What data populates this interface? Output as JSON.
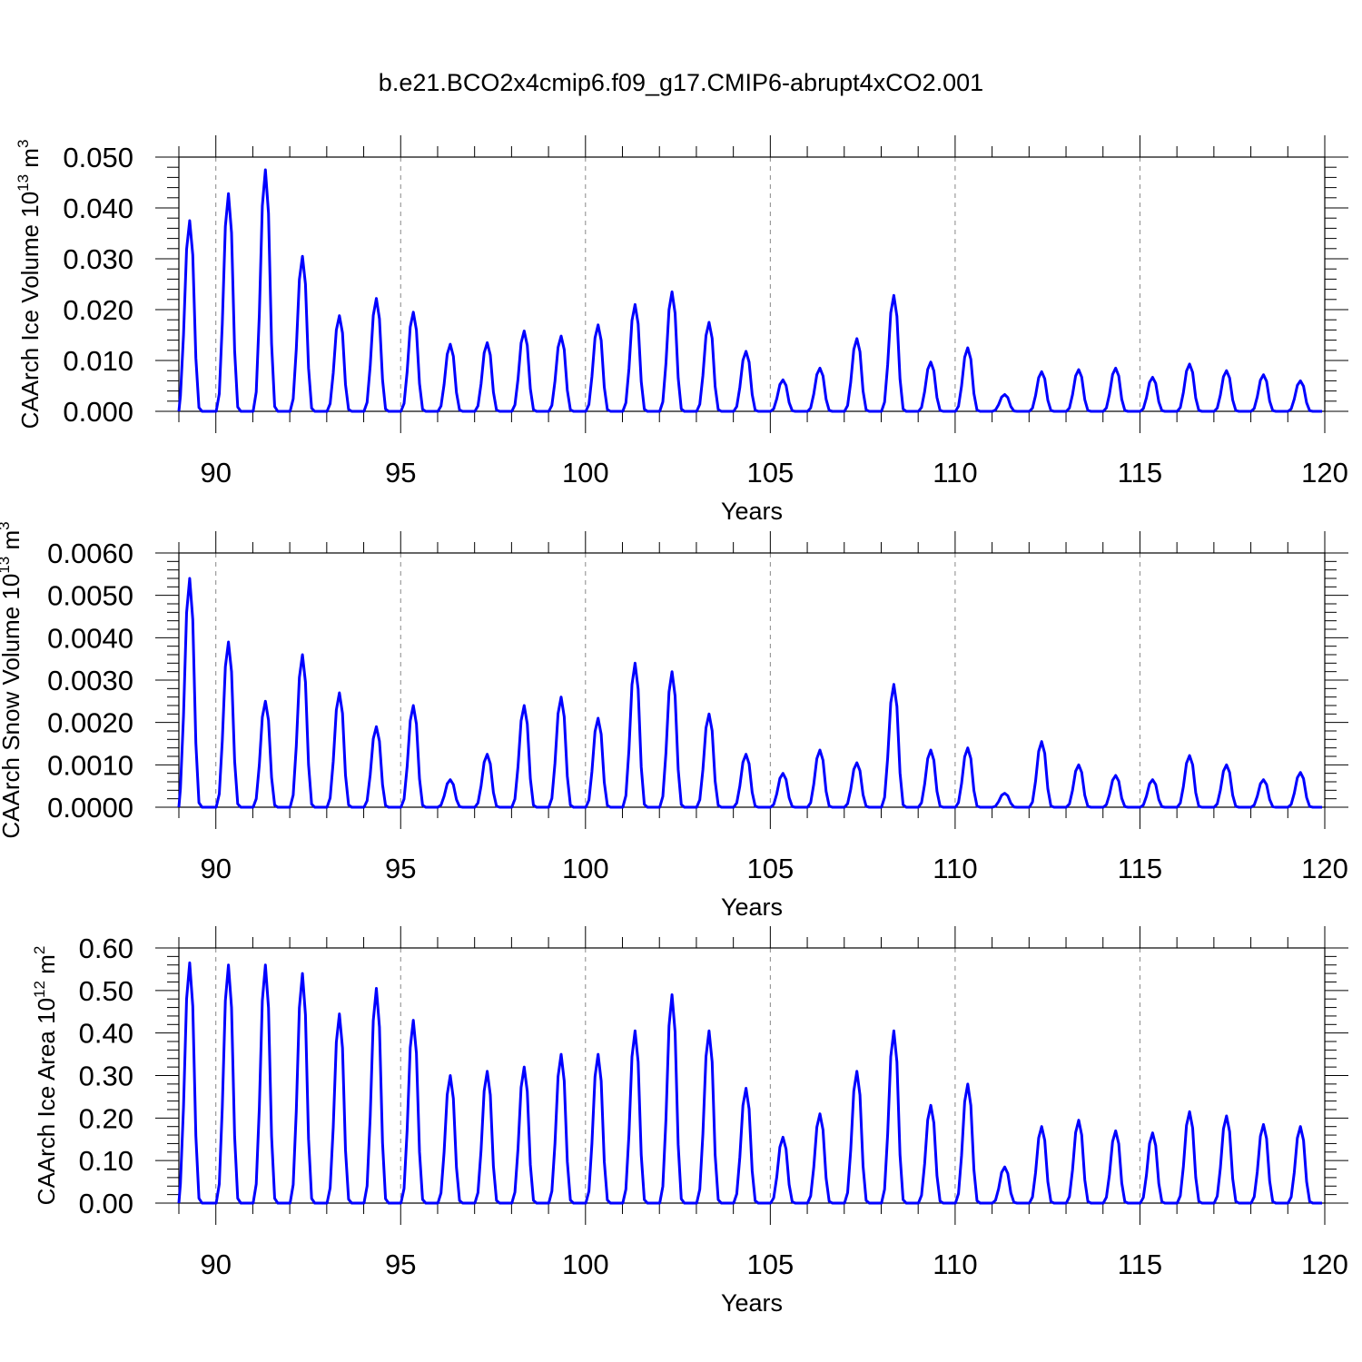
{
  "title": "b.e21.BCO2x4cmip6.f09_g17.CMIP6-abrupt4xCO2.001",
  "line_color": "#0000ff",
  "chart_data": [
    {
      "type": "line",
      "ylabel_main": "CAArch Ice Volume 10",
      "ylabel_exp": "13",
      "ylabel_unit": " m",
      "ylabel_unit_exp": "3",
      "xlabel": "Years",
      "xlim": [
        89,
        120
      ],
      "ylim": [
        0,
        0.05
      ],
      "yticks": [
        "0.000",
        "0.010",
        "0.020",
        "0.030",
        "0.040",
        "0.050"
      ],
      "xticks": [
        "90",
        "95",
        "100",
        "105",
        "110",
        "115",
        "120"
      ],
      "grid": "vertical dashed at major x ticks",
      "series": [
        {
          "name": "Ice Volume",
          "peak_years": [
            89.25,
            90.3,
            91.3,
            92.3,
            93.3,
            94.3,
            95.3,
            96.3,
            97.3,
            98.3,
            99.3,
            100.3,
            101.3,
            102.3,
            103.3,
            104.3,
            105.3,
            106.3,
            107.3,
            108.3,
            109.3,
            110.3,
            111.3,
            112.3,
            113.3,
            114.3,
            115.3,
            116.3,
            117.3,
            118.3,
            119.3
          ],
          "peaks": [
            0.0375,
            0.0428,
            0.0475,
            0.0305,
            0.0188,
            0.0222,
            0.0195,
            0.0132,
            0.0135,
            0.0158,
            0.0148,
            0.017,
            0.021,
            0.0235,
            0.0175,
            0.0118,
            0.0062,
            0.0085,
            0.0143,
            0.0228,
            0.0097,
            0.0125,
            0.0033,
            0.0078,
            0.0082,
            0.0085,
            0.0067,
            0.0093,
            0.008,
            0.0072,
            0.006
          ]
        }
      ]
    },
    {
      "type": "line",
      "ylabel_main": "CAArch Snow Volume 10",
      "ylabel_exp": "13",
      "ylabel_unit": " m",
      "ylabel_unit_exp": "3",
      "xlabel": "Years",
      "xlim": [
        89,
        120
      ],
      "ylim": [
        0,
        0.006
      ],
      "yticks": [
        "0.0000",
        "0.0010",
        "0.0020",
        "0.0030",
        "0.0040",
        "0.0050",
        "0.0060"
      ],
      "xticks": [
        "90",
        "95",
        "100",
        "105",
        "110",
        "115",
        "120"
      ],
      "grid": "vertical dashed at major x ticks",
      "series": [
        {
          "name": "Snow Volume",
          "peak_years": [
            89.25,
            90.3,
            91.3,
            92.3,
            93.3,
            94.3,
            95.3,
            96.3,
            97.3,
            98.3,
            99.3,
            100.3,
            101.3,
            102.3,
            103.3,
            104.3,
            105.3,
            106.3,
            107.3,
            108.3,
            109.3,
            110.3,
            111.3,
            112.3,
            113.3,
            114.3,
            115.3,
            116.3,
            117.3,
            118.3,
            119.3
          ],
          "peaks": [
            0.0054,
            0.0039,
            0.0025,
            0.0036,
            0.0027,
            0.0019,
            0.0024,
            0.00065,
            0.00125,
            0.0024,
            0.0026,
            0.0021,
            0.0034,
            0.0032,
            0.0022,
            0.00125,
            0.0008,
            0.00135,
            0.00105,
            0.0029,
            0.00135,
            0.0014,
            0.00033,
            0.00155,
            0.001,
            0.00075,
            0.00065,
            0.00122,
            0.001,
            0.00065,
            0.00082
          ]
        }
      ]
    },
    {
      "type": "line",
      "ylabel_main": "CAArch Ice Area 10",
      "ylabel_exp": "12",
      "ylabel_unit": " m",
      "ylabel_unit_exp": "2",
      "xlabel": "Years",
      "xlim": [
        89,
        120
      ],
      "ylim": [
        0,
        0.6
      ],
      "yticks": [
        "0.00",
        "0.10",
        "0.20",
        "0.30",
        "0.40",
        "0.50",
        "0.60"
      ],
      "xticks": [
        "90",
        "95",
        "100",
        "105",
        "110",
        "115",
        "120"
      ],
      "grid": "vertical dashed at major x ticks",
      "series": [
        {
          "name": "Ice Area",
          "peak_years": [
            89.25,
            90.3,
            91.3,
            92.3,
            93.3,
            94.3,
            95.3,
            96.3,
            97.3,
            98.3,
            99.3,
            100.3,
            101.3,
            102.3,
            103.3,
            104.3,
            105.3,
            106.3,
            107.3,
            108.3,
            109.3,
            110.3,
            111.3,
            112.3,
            113.3,
            114.3,
            115.3,
            116.3,
            117.3,
            118.3,
            119.3
          ],
          "peaks": [
            0.565,
            0.56,
            0.56,
            0.54,
            0.445,
            0.505,
            0.43,
            0.3,
            0.31,
            0.32,
            0.35,
            0.35,
            0.405,
            0.49,
            0.405,
            0.27,
            0.155,
            0.21,
            0.31,
            0.405,
            0.23,
            0.28,
            0.085,
            0.18,
            0.195,
            0.17,
            0.165,
            0.215,
            0.205,
            0.185,
            0.18
          ]
        }
      ]
    }
  ]
}
